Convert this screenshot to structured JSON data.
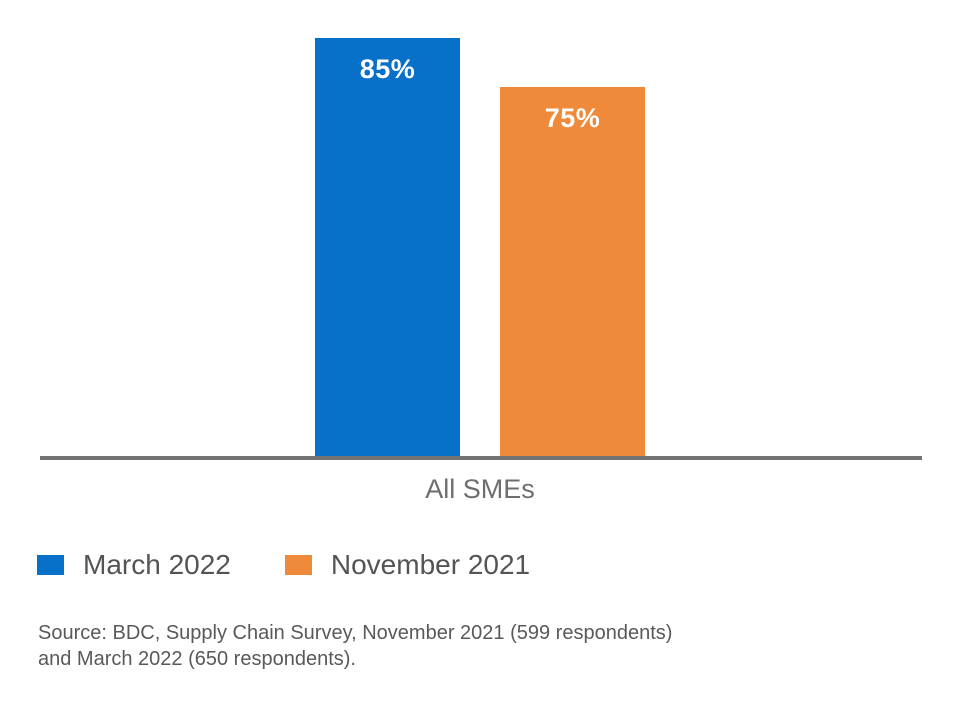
{
  "chart_data": {
    "type": "bar",
    "title": "",
    "categories": [
      "All SMEs"
    ],
    "series": [
      {
        "name": "March 2022",
        "color": "#0771C9",
        "values": [
          85
        ],
        "label": "85%"
      },
      {
        "name": "November 2021",
        "color": "#EE8A39",
        "values": [
          75
        ],
        "label": "75%"
      }
    ],
    "xlabel": "",
    "ylabel": "",
    "ylim": [
      0,
      100
    ],
    "unit": "%",
    "grid": false,
    "axis_line_color": "#737373",
    "value_label_color": "#ffffff",
    "legend_position": "bottom-left"
  },
  "legend": {
    "items": [
      {
        "label": "March 2022",
        "color": "#0771C9"
      },
      {
        "label": "November 2021",
        "color": "#EE8A39"
      }
    ]
  },
  "source": {
    "lines": [
      "Source: BDC, Supply Chain Survey, November 2021 (599 respondents)",
      "and March 2022 (650 respondents)."
    ]
  }
}
